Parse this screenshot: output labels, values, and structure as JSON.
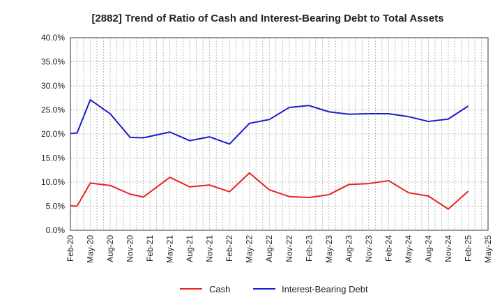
{
  "chart_data": {
    "type": "line",
    "title": "[2882]  Trend of Ratio of Cash and Interest-Bearing Debt to Total Assets",
    "xlabel": "",
    "ylabel": "",
    "ylim": [
      0,
      40
    ],
    "y_ticks": [
      "0.0%",
      "5.0%",
      "10.0%",
      "15.0%",
      "20.0%",
      "25.0%",
      "30.0%",
      "35.0%",
      "40.0%"
    ],
    "x_ticks": [
      "Feb-20",
      "May-20",
      "Aug-20",
      "Nov-20",
      "Feb-21",
      "May-21",
      "Aug-21",
      "Nov-21",
      "Feb-22",
      "May-22",
      "Aug-22",
      "Nov-22",
      "Feb-23",
      "May-23",
      "Aug-23",
      "Nov-23",
      "Feb-24",
      "May-24",
      "Aug-24",
      "Nov-24",
      "Feb-25",
      "May-25"
    ],
    "grid": true,
    "legend_position": "bottom",
    "series": [
      {
        "name": "Cash",
        "color": "#e8231f",
        "points": [
          [
            "Feb-20",
            5.1
          ],
          [
            "Mar-20",
            5.0
          ],
          [
            "May-20",
            9.8
          ],
          [
            "Aug-20",
            9.3
          ],
          [
            "Nov-20",
            7.5
          ],
          [
            "Jan-21",
            6.9
          ],
          [
            "May-21",
            11.0
          ],
          [
            "Aug-21",
            9.0
          ],
          [
            "Nov-21",
            9.4
          ],
          [
            "Feb-22",
            8.0
          ],
          [
            "May-22",
            11.9
          ],
          [
            "Aug-22",
            8.4
          ],
          [
            "Nov-22",
            7.0
          ],
          [
            "Feb-23",
            6.8
          ],
          [
            "May-23",
            7.4
          ],
          [
            "Aug-23",
            9.5
          ],
          [
            "Nov-23",
            9.7
          ],
          [
            "Feb-24",
            10.3
          ],
          [
            "May-24",
            7.8
          ],
          [
            "Aug-24",
            7.1
          ],
          [
            "Nov-24",
            4.4
          ],
          [
            "Feb-25",
            8.1
          ]
        ]
      },
      {
        "name": "Interest-Bearing Debt",
        "color": "#1c1ccc",
        "points": [
          [
            "Feb-20",
            20.1
          ],
          [
            "Mar-20",
            20.2
          ],
          [
            "May-20",
            27.1
          ],
          [
            "Aug-20",
            24.2
          ],
          [
            "Nov-20",
            19.3
          ],
          [
            "Jan-21",
            19.2
          ],
          [
            "May-21",
            20.4
          ],
          [
            "Aug-21",
            18.6
          ],
          [
            "Nov-21",
            19.4
          ],
          [
            "Feb-22",
            17.9
          ],
          [
            "May-22",
            22.2
          ],
          [
            "Aug-22",
            23.0
          ],
          [
            "Nov-22",
            25.5
          ],
          [
            "Feb-23",
            25.9
          ],
          [
            "May-23",
            24.6
          ],
          [
            "Aug-23",
            24.1
          ],
          [
            "Nov-23",
            24.2
          ],
          [
            "Feb-24",
            24.2
          ],
          [
            "May-24",
            23.6
          ],
          [
            "Aug-24",
            22.6
          ],
          [
            "Nov-24",
            23.1
          ],
          [
            "Feb-25",
            25.8
          ]
        ]
      }
    ]
  }
}
